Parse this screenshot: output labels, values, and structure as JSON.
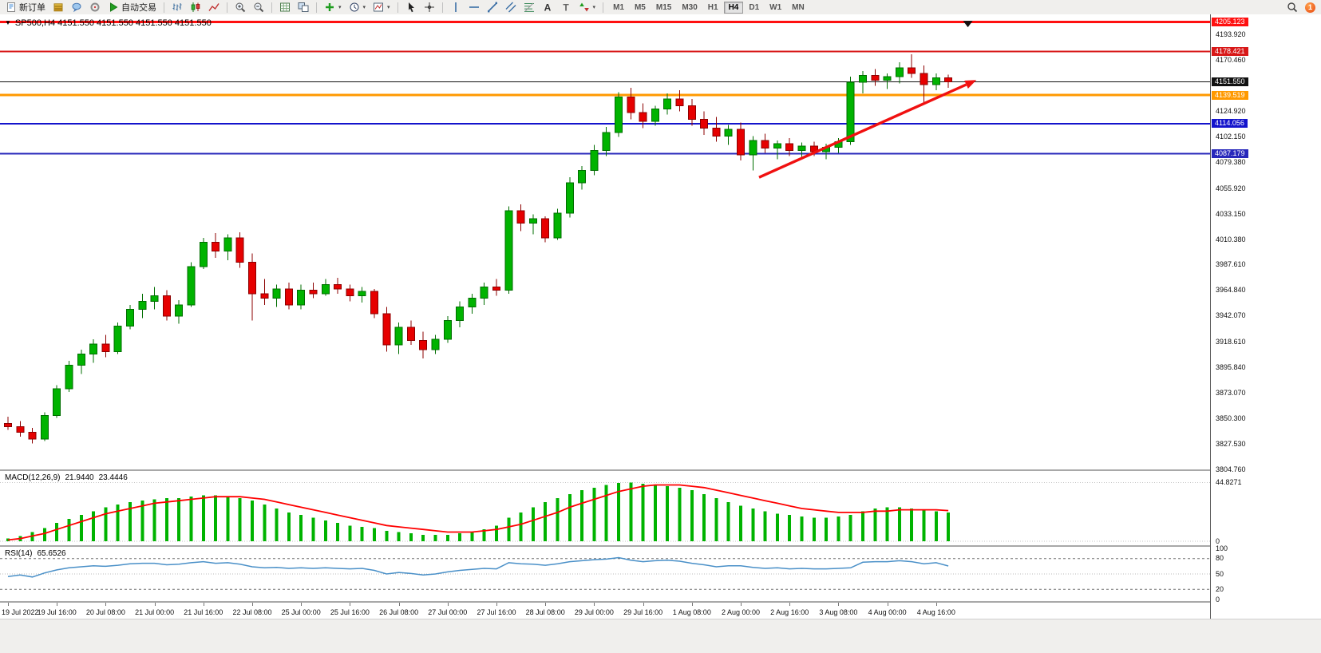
{
  "icons": {
    "collapse": "▼",
    "caret": "▾"
  },
  "toolbar": {
    "buttons": [
      {
        "name": "new-order-button",
        "icon": "doc",
        "label": "新订单"
      },
      {
        "name": "market-watch-button",
        "icon": "stack"
      },
      {
        "name": "data-window-button",
        "icon": "bubble"
      },
      {
        "name": "navigator-button",
        "icon": "ring"
      },
      {
        "name": "autotrading-button",
        "icon": "play",
        "label": "自动交易"
      },
      {
        "sep": true
      },
      {
        "name": "bar-chart-button",
        "icon": "bars"
      },
      {
        "name": "candlestick-chart-button",
        "icon": "candles"
      },
      {
        "name": "line-chart-button",
        "icon": "linechart"
      },
      {
        "sep": true
      },
      {
        "name": "zoom-in-button",
        "icon": "zoomin"
      },
      {
        "name": "zoom-out-button",
        "icon": "zoomout"
      },
      {
        "sep": true
      },
      {
        "name": "grid-button",
        "icon": "grid"
      },
      {
        "name": "tile-windows-button",
        "icon": "tile"
      },
      {
        "sep": true
      },
      {
        "name": "indicators-button",
        "icon": "plus",
        "caret": true
      },
      {
        "name": "periods-button",
        "icon": "clock",
        "caret": true
      },
      {
        "name": "templates-button",
        "icon": "template",
        "caret": true
      },
      {
        "sep": true
      },
      {
        "name": "cursor-button",
        "icon": "cursor"
      },
      {
        "name": "crosshair-button",
        "icon": "crosshair"
      },
      {
        "sep": true
      },
      {
        "name": "vertical-line-button",
        "icon": "vline"
      },
      {
        "name": "horizontal-line-button",
        "icon": "hline"
      },
      {
        "name": "trendline-button",
        "icon": "trendline"
      },
      {
        "name": "channel-button",
        "icon": "channel"
      },
      {
        "name": "fibonacci-button",
        "icon": "fibo"
      },
      {
        "name": "text-button",
        "icon": "textA"
      },
      {
        "name": "label-button",
        "icon": "textT"
      },
      {
        "name": "arrows-button",
        "icon": "arrows",
        "caret": true
      },
      {
        "sep": true
      }
    ],
    "timeframes": [
      "M1",
      "M5",
      "M15",
      "M30",
      "H1",
      "H4",
      "D1",
      "W1",
      "MN"
    ],
    "active_timeframe": "H4",
    "notification_count": "1"
  },
  "chart": {
    "title": "SP500,H4 4151.550 4151.550 4151.550 4151.550"
  },
  "macd": {
    "name": "MACD(12,26,9)",
    "value_main": "21.9440",
    "value_signal": "23.4446",
    "axis_ticks": [
      "44.8271",
      "0"
    ]
  },
  "rsi": {
    "name": "RSI(14)",
    "value": "65.6526",
    "axis_ticks": [
      "100",
      "80",
      "50",
      "20",
      "0"
    ]
  },
  "chart_data": {
    "type": "candlestick",
    "symbol": "SP500",
    "timeframe": "H4",
    "x_ticks": [
      "19 Jul 2022",
      "19 Jul 16:00",
      "20 Jul 08:00",
      "21 Jul 00:00",
      "21 Jul 16:00",
      "22 Jul 08:00",
      "25 Jul 00:00",
      "25 Jul 16:00",
      "26 Jul 08:00",
      "27 Jul 00:00",
      "27 Jul 16:00",
      "28 Jul 08:00",
      "29 Jul 00:00",
      "29 Jul 16:00",
      "1 Aug 08:00",
      "2 Aug 00:00",
      "2 Aug 16:00",
      "3 Aug 08:00",
      "4 Aug 00:00",
      "4 Aug 16:00"
    ],
    "y_ticks": [
      "4193.920",
      "4170.460",
      "4124.920",
      "4102.150",
      "4079.380",
      "4055.920",
      "4033.150",
      "4010.380",
      "3987.610",
      "3964.840",
      "3942.070",
      "3918.610",
      "3895.840",
      "3873.070",
      "3850.300",
      "3827.530",
      "3804.760"
    ],
    "ohlc": [
      [
        3846,
        3852,
        3840,
        3843
      ],
      [
        3843,
        3848,
        3834,
        3838
      ],
      [
        3838,
        3842,
        3828,
        3832
      ],
      [
        3832,
        3856,
        3830,
        3853
      ],
      [
        3853,
        3880,
        3851,
        3877
      ],
      [
        3877,
        3902,
        3874,
        3898
      ],
      [
        3898,
        3912,
        3890,
        3908
      ],
      [
        3908,
        3921,
        3900,
        3917
      ],
      [
        3917,
        3925,
        3905,
        3910
      ],
      [
        3910,
        3936,
        3908,
        3933
      ],
      [
        3933,
        3952,
        3930,
        3948
      ],
      [
        3948,
        3962,
        3940,
        3955
      ],
      [
        3955,
        3968,
        3948,
        3960
      ],
      [
        3960,
        3965,
        3938,
        3942
      ],
      [
        3942,
        3956,
        3935,
        3952
      ],
      [
        3952,
        3990,
        3950,
        3986
      ],
      [
        3986,
        4012,
        3984,
        4008
      ],
      [
        4008,
        4016,
        3994,
        4000
      ],
      [
        4000,
        4015,
        3992,
        4012
      ],
      [
        4012,
        4017,
        3985,
        3990
      ],
      [
        3990,
        3998,
        3938,
        3962
      ],
      [
        3962,
        3975,
        3952,
        3958
      ],
      [
        3958,
        3970,
        3950,
        3966
      ],
      [
        3966,
        3972,
        3948,
        3952
      ],
      [
        3952,
        3970,
        3948,
        3965
      ],
      [
        3965,
        3972,
        3958,
        3962
      ],
      [
        3962,
        3975,
        3960,
        3970
      ],
      [
        3970,
        3976,
        3962,
        3966
      ],
      [
        3966,
        3970,
        3955,
        3960
      ],
      [
        3960,
        3968,
        3954,
        3964
      ],
      [
        3964,
        3966,
        3940,
        3944
      ],
      [
        3944,
        3950,
        3910,
        3916
      ],
      [
        3916,
        3936,
        3908,
        3932
      ],
      [
        3932,
        3938,
        3916,
        3920
      ],
      [
        3920,
        3928,
        3904,
        3912
      ],
      [
        3912,
        3925,
        3908,
        3921
      ],
      [
        3921,
        3942,
        3918,
        3938
      ],
      [
        3938,
        3955,
        3932,
        3950
      ],
      [
        3950,
        3962,
        3944,
        3958
      ],
      [
        3958,
        3972,
        3952,
        3968
      ],
      [
        3968,
        3975,
        3960,
        3965
      ],
      [
        3965,
        4040,
        3962,
        4036
      ],
      [
        4036,
        4042,
        4018,
        4025
      ],
      [
        4025,
        4033,
        4015,
        4029
      ],
      [
        4029,
        4031,
        4008,
        4012
      ],
      [
        4012,
        4038,
        4010,
        4034
      ],
      [
        4034,
        4066,
        4030,
        4061
      ],
      [
        4061,
        4076,
        4055,
        4072
      ],
      [
        4072,
        4095,
        4068,
        4090
      ],
      [
        4090,
        4111,
        4085,
        4106
      ],
      [
        4106,
        4142,
        4102,
        4138
      ],
      [
        4138,
        4146,
        4118,
        4124
      ],
      [
        4124,
        4132,
        4110,
        4116
      ],
      [
        4116,
        4130,
        4112,
        4127
      ],
      [
        4127,
        4141,
        4122,
        4136
      ],
      [
        4136,
        4144,
        4125,
        4130
      ],
      [
        4130,
        4136,
        4112,
        4118
      ],
      [
        4118,
        4125,
        4104,
        4110
      ],
      [
        4110,
        4120,
        4098,
        4103
      ],
      [
        4103,
        4113,
        4095,
        4109
      ],
      [
        4109,
        4115,
        4081,
        4086
      ],
      [
        4086,
        4103,
        4072,
        4099
      ],
      [
        4099,
        4105,
        4088,
        4092
      ],
      [
        4092,
        4099,
        4082,
        4096
      ],
      [
        4096,
        4101,
        4085,
        4090
      ],
      [
        4090,
        4097,
        4084,
        4094
      ],
      [
        4094,
        4098,
        4085,
        4089
      ],
      [
        4089,
        4096,
        4082,
        4093
      ],
      [
        4093,
        4101,
        4088,
        4098
      ],
      [
        4098,
        4156,
        4095,
        4151
      ],
      [
        4151,
        4161,
        4141,
        4157
      ],
      [
        4157,
        4163,
        4148,
        4153
      ],
      [
        4153,
        4159,
        4145,
        4156
      ],
      [
        4156,
        4169,
        4150,
        4164
      ],
      [
        4164,
        4176,
        4155,
        4159
      ],
      [
        4159,
        4166,
        4133,
        4149
      ],
      [
        4149,
        4159,
        4144,
        4155
      ],
      [
        4155,
        4158,
        4146,
        4151.55
      ]
    ],
    "levels": [
      {
        "price": 4205.123,
        "label": "4205.123",
        "color": "#ff1010",
        "width": 3
      },
      {
        "price": 4178.421,
        "label": "4178.421",
        "color": "#d81818",
        "width": 2
      },
      {
        "price": 4139.519,
        "label": "4139.519",
        "color": "#ff9900",
        "width": 3
      },
      {
        "price": 4114.056,
        "label": "4114.056",
        "color": "#1414cc",
        "width": 2
      },
      {
        "price": 4087.179,
        "label": "4087.179",
        "color": "#2828bb",
        "width": 2
      }
    ],
    "current_price": {
      "price": 4151.55,
      "label": "4151.550",
      "color": "#111111"
    },
    "macd_histogram": [
      2,
      4,
      7,
      10,
      14,
      17,
      20,
      23,
      26,
      28,
      30,
      31,
      32,
      33,
      33,
      34,
      35,
      35,
      34,
      33,
      31,
      28,
      25,
      22,
      20,
      18,
      16,
      14,
      12,
      11,
      10,
      8,
      7,
      6,
      5,
      5,
      5,
      6,
      7,
      9,
      12,
      18,
      22,
      26,
      30,
      33,
      36,
      39,
      41,
      43,
      44.5,
      44.8,
      44,
      43,
      42,
      41,
      39,
      36,
      33,
      30,
      27,
      25,
      23,
      21,
      20,
      19,
      18,
      18,
      19,
      20,
      23,
      25,
      26,
      26,
      25,
      24,
      23,
      21.94
    ],
    "macd_signal": [
      1,
      2,
      4,
      6,
      9,
      12,
      15,
      18,
      21,
      23,
      25,
      27,
      29,
      30,
      31,
      32,
      33,
      34,
      34,
      34,
      33,
      32,
      30,
      28,
      26,
      24,
      22,
      20,
      18,
      16,
      14,
      12,
      11,
      10,
      9,
      8,
      7,
      7,
      7,
      8,
      9,
      11,
      13,
      16,
      19,
      22,
      26,
      29,
      32,
      35,
      38,
      40,
      42,
      43,
      43,
      43,
      42,
      41,
      39,
      37,
      35,
      33,
      31,
      29,
      27,
      25,
      24,
      23,
      22,
      22,
      22,
      23,
      23,
      24,
      24,
      24,
      24,
      23.44
    ],
    "macd_range": [
      0,
      50
    ],
    "rsi_series": [
      45,
      48,
      44,
      52,
      58,
      62,
      64,
      66,
      65,
      67,
      70,
      71,
      71,
      68,
      69,
      72,
      74,
      71,
      72,
      69,
      64,
      62,
      63,
      61,
      62,
      61,
      62,
      61,
      60,
      61,
      57,
      50,
      53,
      51,
      48,
      50,
      54,
      57,
      59,
      61,
      60,
      72,
      70,
      69,
      67,
      70,
      74,
      76,
      78,
      79,
      82,
      77,
      74,
      76,
      77,
      75,
      71,
      68,
      64,
      66,
      66,
      63,
      61,
      62,
      60,
      61,
      60,
      60,
      61,
      62,
      73,
      74,
      74,
      76,
      74,
      70,
      72,
      65.65
    ],
    "rsi_levels_dashed": [
      80,
      20
    ],
    "rsi_level_dotted": 50,
    "trend_arrow": {
      "from_candle": 61.5,
      "from_price": 4066,
      "to_candle": 79.3,
      "to_price": 4153,
      "color": "#f01010"
    },
    "marker": {
      "candle": 78.6,
      "price": 4206
    },
    "colors": {
      "bull": "#00b300",
      "bull_border": "#006e00",
      "bear": "#e60000",
      "bear_border": "#8c0000",
      "macd_hist": "#00b300",
      "macd_signal": "#ff0000",
      "rsi_line": "#4a90c8"
    }
  }
}
